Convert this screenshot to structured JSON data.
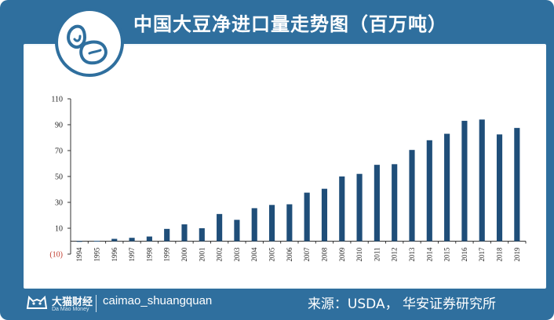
{
  "header": {
    "title": "中国大豆净进口量走势图（百万吨）"
  },
  "footer": {
    "brand_cn": "大猫财经",
    "brand_en": "Da Mao Money",
    "handle": "caimao_shuangquan",
    "source": "来源：USDA， 华安证券研究所"
  },
  "colors": {
    "frame": "#2f6f9e",
    "bar": "#1f4e79",
    "panel": "#f2f8fb"
  },
  "icons": {
    "header_logo": "soybean-icon",
    "brand_logo": "cat-icon"
  },
  "chart_data": {
    "type": "bar",
    "title": "中国大豆净进口量走势图（百万吨）",
    "xlabel": "",
    "ylabel": "",
    "categories": [
      "1994",
      "1995",
      "1996",
      "1997",
      "1998",
      "1999",
      "2000",
      "2001",
      "2002",
      "2003",
      "2004",
      "2005",
      "2006",
      "2007",
      "2008",
      "2009",
      "2010",
      "2011",
      "2012",
      "2013",
      "2014",
      "2015",
      "2016",
      "2017",
      "2018",
      "2019"
    ],
    "values": [
      0.1,
      0.3,
      1.8,
      2.6,
      3.6,
      9.5,
      13.0,
      10.0,
      21.0,
      16.5,
      25.5,
      28.0,
      28.5,
      37.5,
      40.5,
      50.0,
      52.0,
      59.0,
      59.5,
      70.5,
      78.0,
      83.0,
      93.0,
      94.0,
      82.5,
      87.5
    ],
    "ylim": [
      -10,
      110
    ],
    "yticks": [
      "110",
      "90",
      "70",
      "50",
      "30",
      "10",
      "(10)"
    ],
    "ytick_values": [
      110,
      90,
      70,
      50,
      30,
      10,
      -10
    ],
    "grid": false,
    "legend": "none"
  }
}
